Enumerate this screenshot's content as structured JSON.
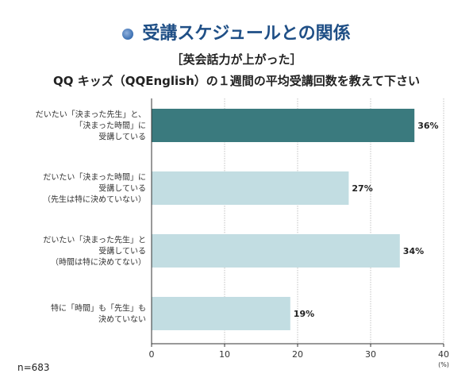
{
  "header": {
    "title": "受講スケジュールとの関係",
    "question_line1": "［英会話力が上がった］",
    "question_line2": "QQ キッズ（QQEnglish）の１週間の平均受講回数を教えて下さい"
  },
  "footer": {
    "sample_size": "n=683"
  },
  "colors": {
    "highlight": "#3a7a7e",
    "bar": "#c2dde2",
    "title": "#1f4f86"
  },
  "chart_data": {
    "type": "bar",
    "orientation": "horizontal",
    "categories": [
      [
        "だいたい「決まった先生」と、",
        "「決まった時間」に",
        "受講している"
      ],
      [
        "だいたい「決まった時間」に",
        "受講している",
        "（先生は特に決めていない）"
      ],
      [
        "だいたい「決まった先生」と",
        "受講している",
        "（時間は特に決めてない）"
      ],
      [
        "特に「時間」も「先生」も",
        "決めていない"
      ]
    ],
    "values": [
      36,
      27,
      34,
      19
    ],
    "value_labels": [
      "36%",
      "27%",
      "34%",
      "19%"
    ],
    "xlim": [
      0,
      40
    ],
    "xticks": [
      0,
      10,
      20,
      30,
      40
    ],
    "xtick_labels": [
      "0",
      "10",
      "20",
      "30",
      "40"
    ],
    "xunit": "(%)",
    "grid": true,
    "highlight_index": 0
  }
}
